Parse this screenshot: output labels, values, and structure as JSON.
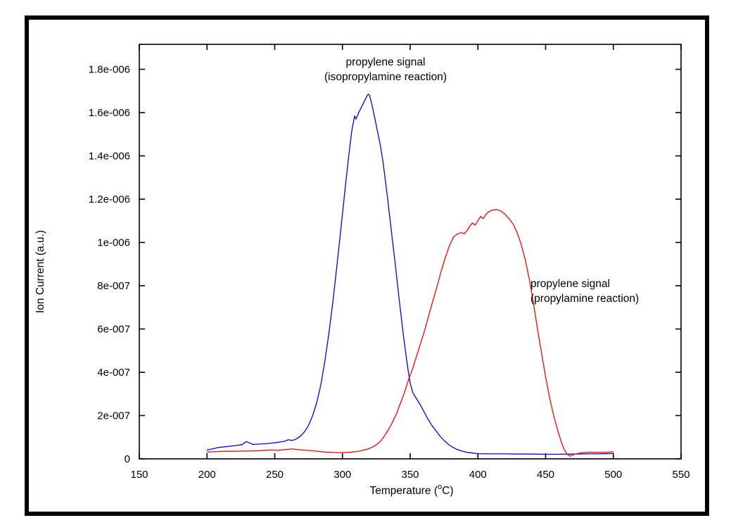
{
  "frame_color": "#000000",
  "background_color": "#ffffff",
  "chart_data": {
    "type": "line",
    "title": "",
    "xlabel": "Temperature (oC)",
    "xlabel_parts": [
      "Temperature (",
      "o",
      "C)"
    ],
    "ylabel": "Ion Current (a.u.)",
    "xlim": [
      150,
      550
    ],
    "ylim": [
      0,
      1.9154e-06
    ],
    "grid": false,
    "legend_position": "none",
    "x_ticks": [
      150,
      200,
      250,
      300,
      350,
      400,
      450,
      500,
      550
    ],
    "y_ticks": [
      {
        "value": 0,
        "label": "0"
      },
      {
        "value": 2e-07,
        "label": "2e-007"
      },
      {
        "value": 4e-07,
        "label": "4e-007"
      },
      {
        "value": 6e-07,
        "label": "6e-007"
      },
      {
        "value": 8e-07,
        "label": "8e-007"
      },
      {
        "value": 1e-06,
        "label": "1e-006"
      },
      {
        "value": 1.2e-06,
        "label": "1.2e-006"
      },
      {
        "value": 1.4e-06,
        "label": "1.4e-006"
      },
      {
        "value": 1.6e-06,
        "label": "1.6e-006"
      },
      {
        "value": 1.8e-06,
        "label": "1.8e-006"
      }
    ],
    "annotations": [
      {
        "lines": [
          "propylene signal",
          "(isopropylamine reaction)"
        ],
        "align": "middle"
      },
      {
        "lines": [
          "propylene signal",
          "(propylamine reaction)"
        ],
        "align": "start"
      }
    ],
    "series": [
      {
        "name": "propylene signal (isopropylamine reaction)",
        "color": "#0000ff",
        "peak": {
          "temperature": 319,
          "current": 1.685e-06
        },
        "points": [
          [
            200,
            4.2e-08
          ],
          [
            204,
            4.6e-08
          ],
          [
            208,
            5.2e-08
          ],
          [
            213,
            5.6e-08
          ],
          [
            218,
            5.9e-08
          ],
          [
            222,
            6.2e-08
          ],
          [
            226,
            6.6e-08
          ],
          [
            229,
            8e-08
          ],
          [
            231,
            7.4e-08
          ],
          [
            234,
            6.7e-08
          ],
          [
            238,
            6.8e-08
          ],
          [
            243,
            7e-08
          ],
          [
            248,
            7.3e-08
          ],
          [
            253,
            7.7e-08
          ],
          [
            257,
            8.1e-08
          ],
          [
            260,
            8.8e-08
          ],
          [
            263,
            8.5e-08
          ],
          [
            266,
            9.2e-08
          ],
          [
            269,
            1.05e-07
          ],
          [
            272,
            1.25e-07
          ],
          [
            275,
            1.55e-07
          ],
          [
            278,
            2e-07
          ],
          [
            281,
            2.6e-07
          ],
          [
            284,
            3.4e-07
          ],
          [
            287,
            4.5e-07
          ],
          [
            290,
            5.8e-07
          ],
          [
            293,
            7.3e-07
          ],
          [
            296,
            9e-07
          ],
          [
            299,
            1.07e-06
          ],
          [
            302,
            1.25e-06
          ],
          [
            305,
            1.42e-06
          ],
          [
            307,
            1.52e-06
          ],
          [
            309,
            1.585e-06
          ],
          [
            310,
            1.57e-06
          ],
          [
            312,
            1.6e-06
          ],
          [
            314,
            1.625e-06
          ],
          [
            316,
            1.65e-06
          ],
          [
            318,
            1.675e-06
          ],
          [
            319,
            1.685e-06
          ],
          [
            320,
            1.68e-06
          ],
          [
            322,
            1.63e-06
          ],
          [
            324,
            1.57e-06
          ],
          [
            326,
            1.51e-06
          ],
          [
            328,
            1.45e-06
          ],
          [
            330,
            1.37e-06
          ],
          [
            333,
            1.22e-06
          ],
          [
            336,
            1.06e-06
          ],
          [
            339,
            9e-07
          ],
          [
            342,
            7.3e-07
          ],
          [
            345,
            5.7e-07
          ],
          [
            348,
            4.3e-07
          ],
          [
            350,
            3.5e-07
          ],
          [
            352,
            3.05e-07
          ],
          [
            354,
            2.85e-07
          ],
          [
            357,
            2.55e-07
          ],
          [
            360,
            2.2e-07
          ],
          [
            363,
            1.85e-07
          ],
          [
            366,
            1.55e-07
          ],
          [
            369,
            1.3e-07
          ],
          [
            372,
            1.05e-07
          ],
          [
            375,
            8.5e-08
          ],
          [
            378,
            6.8e-08
          ],
          [
            381,
            5.5e-08
          ],
          [
            384,
            4.5e-08
          ],
          [
            388,
            3.6e-08
          ],
          [
            392,
            3e-08
          ],
          [
            396,
            2.7e-08
          ],
          [
            400,
            2.4e-08
          ],
          [
            410,
            2.3e-08
          ],
          [
            420,
            2.3e-08
          ],
          [
            430,
            2.2e-08
          ],
          [
            440,
            2.2e-08
          ],
          [
            450,
            2.1e-08
          ],
          [
            460,
            2.1e-08
          ],
          [
            470,
            2.2e-08
          ],
          [
            480,
            2.3e-08
          ],
          [
            490,
            2.3e-08
          ],
          [
            500,
            2.5e-08
          ]
        ]
      },
      {
        "name": "propylene signal (propylamine reaction)",
        "color": "#ff0000",
        "peak": {
          "temperature": 413,
          "current": 1.152e-06
        },
        "points": [
          [
            200,
            3.2e-08
          ],
          [
            210,
            3.4e-08
          ],
          [
            220,
            3.5e-08
          ],
          [
            230,
            3.6e-08
          ],
          [
            240,
            3.8e-08
          ],
          [
            247,
            4.1e-08
          ],
          [
            252,
            3.9e-08
          ],
          [
            258,
            4.3e-08
          ],
          [
            263,
            4.6e-08
          ],
          [
            268,
            4.2e-08
          ],
          [
            274,
            3.9e-08
          ],
          [
            280,
            3.6e-08
          ],
          [
            286,
            3.2e-08
          ],
          [
            292,
            3e-08
          ],
          [
            298,
            2.9e-08
          ],
          [
            304,
            3e-08
          ],
          [
            310,
            3.3e-08
          ],
          [
            315,
            3.9e-08
          ],
          [
            320,
            4.8e-08
          ],
          [
            324,
            6e-08
          ],
          [
            328,
            8e-08
          ],
          [
            331,
            1.05e-07
          ],
          [
            334,
            1.35e-07
          ],
          [
            337,
            1.7e-07
          ],
          [
            340,
            2.1e-07
          ],
          [
            343,
            2.6e-07
          ],
          [
            346,
            3.1e-07
          ],
          [
            349,
            3.7e-07
          ],
          [
            352,
            4.2e-07
          ],
          [
            355,
            4.8e-07
          ],
          [
            358,
            5.4e-07
          ],
          [
            361,
            6e-07
          ],
          [
            364,
            6.7e-07
          ],
          [
            367,
            7.35e-07
          ],
          [
            370,
            8e-07
          ],
          [
            373,
            8.7e-07
          ],
          [
            376,
            9.3e-07
          ],
          [
            379,
            9.85e-07
          ],
          [
            382,
            1.025e-06
          ],
          [
            385,
            1.04e-06
          ],
          [
            388,
            1.045e-06
          ],
          [
            390,
            1.04e-06
          ],
          [
            392,
            1.055e-06
          ],
          [
            394,
            1.075e-06
          ],
          [
            396,
            1.09e-06
          ],
          [
            398,
            1.08e-06
          ],
          [
            400,
            1.1e-06
          ],
          [
            402,
            1.12e-06
          ],
          [
            404,
            1.11e-06
          ],
          [
            406,
            1.13e-06
          ],
          [
            408,
            1.142e-06
          ],
          [
            411,
            1.15e-06
          ],
          [
            414,
            1.152e-06
          ],
          [
            417,
            1.145e-06
          ],
          [
            420,
            1.13e-06
          ],
          [
            423,
            1.11e-06
          ],
          [
            426,
            1.085e-06
          ],
          [
            429,
            1.045e-06
          ],
          [
            432,
            9.9e-07
          ],
          [
            435,
            9.2e-07
          ],
          [
            438,
            8.3e-07
          ],
          [
            441,
            7.2e-07
          ],
          [
            444,
            6e-07
          ],
          [
            447,
            4.9e-07
          ],
          [
            450,
            3.8e-07
          ],
          [
            453,
            2.8e-07
          ],
          [
            456,
            2e-07
          ],
          [
            459,
            1.3e-07
          ],
          [
            462,
            7e-08
          ],
          [
            464,
            4e-08
          ],
          [
            466,
            2.2e-08
          ],
          [
            468,
            1.2e-08
          ],
          [
            471,
            2e-08
          ],
          [
            474,
            2.5e-08
          ],
          [
            478,
            2.9e-08
          ],
          [
            483,
            3.1e-08
          ],
          [
            488,
            3e-08
          ],
          [
            493,
            3e-08
          ],
          [
            500,
            3.3e-08
          ]
        ]
      }
    ]
  }
}
